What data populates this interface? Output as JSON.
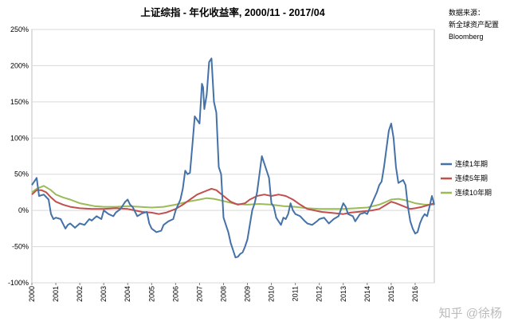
{
  "chart_data": {
    "type": "line",
    "title": "上证综指 - 年化收益率, 2000/11 - 2017/04",
    "source_lines": [
      "数据来源：",
      "新全球资产配置",
      "Bloomberg"
    ],
    "watermark": "知乎 @徐杨",
    "ylim": [
      -100,
      250
    ],
    "y_ticks": [
      250,
      200,
      150,
      100,
      50,
      0,
      -50,
      -100
    ],
    "y_tick_labels": [
      "250%",
      "200%",
      "150%",
      "100%",
      "50%",
      "0%",
      "-50%",
      "-100%"
    ],
    "x_range": [
      2000.0,
      2016.8
    ],
    "x_ticks": [
      2000,
      2001,
      2002,
      2003,
      2004,
      2005,
      2006,
      2007,
      2008,
      2009,
      2010,
      2011,
      2012,
      2013,
      2014,
      2015,
      2016
    ],
    "x_tick_labels": [
      "2000",
      "2001",
      "2002",
      "2003",
      "2004",
      "2005",
      "2006",
      "2007",
      "2008",
      "2009",
      "2010",
      "2011",
      "2012",
      "2013",
      "2014",
      "2015",
      "2016"
    ],
    "legend_position": "right",
    "grid": "horizontal",
    "series": [
      {
        "name": "连续1年期",
        "color": "#4472a8",
        "points": [
          [
            2000.0,
            35
          ],
          [
            2000.2,
            45
          ],
          [
            2000.3,
            20
          ],
          [
            2000.5,
            22
          ],
          [
            2000.7,
            15
          ],
          [
            2000.8,
            -5
          ],
          [
            2000.9,
            -12
          ],
          [
            2001.0,
            -10
          ],
          [
            2001.2,
            -12
          ],
          [
            2001.4,
            -25
          ],
          [
            2001.5,
            -20
          ],
          [
            2001.6,
            -18
          ],
          [
            2001.8,
            -24
          ],
          [
            2002.0,
            -18
          ],
          [
            2002.2,
            -20
          ],
          [
            2002.4,
            -12
          ],
          [
            2002.5,
            -14
          ],
          [
            2002.7,
            -8
          ],
          [
            2002.9,
            -12
          ],
          [
            2003.0,
            0
          ],
          [
            2003.2,
            -5
          ],
          [
            2003.4,
            -8
          ],
          [
            2003.5,
            -3
          ],
          [
            2003.7,
            2
          ],
          [
            2003.9,
            12
          ],
          [
            2004.0,
            15
          ],
          [
            2004.1,
            8
          ],
          [
            2004.2,
            5
          ],
          [
            2004.4,
            -8
          ],
          [
            2004.6,
            -4
          ],
          [
            2004.8,
            -2
          ],
          [
            2004.9,
            -18
          ],
          [
            2005.0,
            -25
          ],
          [
            2005.2,
            -30
          ],
          [
            2005.4,
            -28
          ],
          [
            2005.5,
            -20
          ],
          [
            2005.7,
            -15
          ],
          [
            2005.9,
            -12
          ],
          [
            2006.0,
            0
          ],
          [
            2006.2,
            15
          ],
          [
            2006.3,
            30
          ],
          [
            2006.4,
            55
          ],
          [
            2006.5,
            50
          ],
          [
            2006.6,
            52
          ],
          [
            2006.7,
            90
          ],
          [
            2006.8,
            130
          ],
          [
            2006.9,
            125
          ],
          [
            2007.0,
            120
          ],
          [
            2007.1,
            175
          ],
          [
            2007.15,
            170
          ],
          [
            2007.2,
            140
          ],
          [
            2007.3,
            160
          ],
          [
            2007.4,
            205
          ],
          [
            2007.5,
            210
          ],
          [
            2007.6,
            150
          ],
          [
            2007.7,
            135
          ],
          [
            2007.8,
            60
          ],
          [
            2007.9,
            50
          ],
          [
            2008.0,
            -10
          ],
          [
            2008.2,
            -30
          ],
          [
            2008.3,
            -45
          ],
          [
            2008.4,
            -55
          ],
          [
            2008.5,
            -65
          ],
          [
            2008.6,
            -64
          ],
          [
            2008.7,
            -60
          ],
          [
            2008.8,
            -58
          ],
          [
            2008.9,
            -50
          ],
          [
            2009.0,
            -40
          ],
          [
            2009.1,
            -20
          ],
          [
            2009.2,
            0
          ],
          [
            2009.3,
            10
          ],
          [
            2009.4,
            25
          ],
          [
            2009.5,
            50
          ],
          [
            2009.6,
            75
          ],
          [
            2009.7,
            65
          ],
          [
            2009.8,
            55
          ],
          [
            2009.9,
            45
          ],
          [
            2010.0,
            10
          ],
          [
            2010.1,
            5
          ],
          [
            2010.2,
            -10
          ],
          [
            2010.3,
            -15
          ],
          [
            2010.4,
            -20
          ],
          [
            2010.5,
            -10
          ],
          [
            2010.6,
            -12
          ],
          [
            2010.7,
            -5
          ],
          [
            2010.8,
            10
          ],
          [
            2010.9,
            0
          ],
          [
            2011.0,
            -5
          ],
          [
            2011.2,
            -8
          ],
          [
            2011.4,
            -15
          ],
          [
            2011.5,
            -18
          ],
          [
            2011.7,
            -20
          ],
          [
            2011.9,
            -15
          ],
          [
            2012.0,
            -12
          ],
          [
            2012.2,
            -10
          ],
          [
            2012.4,
            -18
          ],
          [
            2012.6,
            -12
          ],
          [
            2012.8,
            -8
          ],
          [
            2013.0,
            10
          ],
          [
            2013.1,
            5
          ],
          [
            2013.2,
            -5
          ],
          [
            2013.4,
            -8
          ],
          [
            2013.5,
            -15
          ],
          [
            2013.7,
            -5
          ],
          [
            2013.9,
            -3
          ],
          [
            2014.0,
            -5
          ],
          [
            2014.2,
            10
          ],
          [
            2014.4,
            25
          ],
          [
            2014.5,
            35
          ],
          [
            2014.6,
            40
          ],
          [
            2014.7,
            60
          ],
          [
            2014.8,
            85
          ],
          [
            2014.9,
            110
          ],
          [
            2015.0,
            120
          ],
          [
            2015.1,
            100
          ],
          [
            2015.2,
            60
          ],
          [
            2015.3,
            38
          ],
          [
            2015.4,
            40
          ],
          [
            2015.5,
            42
          ],
          [
            2015.6,
            35
          ],
          [
            2015.7,
            5
          ],
          [
            2015.8,
            -15
          ],
          [
            2015.9,
            -25
          ],
          [
            2016.0,
            -32
          ],
          [
            2016.1,
            -30
          ],
          [
            2016.2,
            -18
          ],
          [
            2016.3,
            -10
          ],
          [
            2016.4,
            -5
          ],
          [
            2016.5,
            -8
          ],
          [
            2016.6,
            5
          ],
          [
            2016.7,
            20
          ],
          [
            2016.8,
            8
          ]
        ]
      },
      {
        "name": "连续5年期",
        "color": "#c0504d",
        "points": [
          [
            2000.0,
            22
          ],
          [
            2000.2,
            28
          ],
          [
            2000.4,
            28
          ],
          [
            2000.6,
            25
          ],
          [
            2000.8,
            18
          ],
          [
            2001.0,
            12
          ],
          [
            2001.3,
            8
          ],
          [
            2001.6,
            5
          ],
          [
            2002.0,
            3
          ],
          [
            2002.5,
            2
          ],
          [
            2003.0,
            2
          ],
          [
            2003.5,
            3
          ],
          [
            2004.0,
            2
          ],
          [
            2004.3,
            0
          ],
          [
            2004.6,
            -2
          ],
          [
            2005.0,
            -3
          ],
          [
            2005.3,
            -5
          ],
          [
            2005.6,
            -3
          ],
          [
            2006.0,
            2
          ],
          [
            2006.3,
            8
          ],
          [
            2006.6,
            15
          ],
          [
            2006.9,
            22
          ],
          [
            2007.2,
            26
          ],
          [
            2007.5,
            30
          ],
          [
            2007.7,
            28
          ],
          [
            2008.0,
            20
          ],
          [
            2008.3,
            12
          ],
          [
            2008.6,
            8
          ],
          [
            2008.9,
            10
          ],
          [
            2009.1,
            15
          ],
          [
            2009.4,
            20
          ],
          [
            2009.7,
            22
          ],
          [
            2010.0,
            20
          ],
          [
            2010.3,
            22
          ],
          [
            2010.6,
            20
          ],
          [
            2010.9,
            15
          ],
          [
            2011.2,
            8
          ],
          [
            2011.5,
            2
          ],
          [
            2011.8,
            0
          ],
          [
            2012.1,
            -2
          ],
          [
            2012.4,
            -3
          ],
          [
            2012.7,
            -4
          ],
          [
            2013.0,
            -5
          ],
          [
            2013.3,
            -3
          ],
          [
            2013.6,
            -2
          ],
          [
            2013.9,
            -1
          ],
          [
            2014.2,
            0
          ],
          [
            2014.5,
            2
          ],
          [
            2014.8,
            8
          ],
          [
            2015.0,
            12
          ],
          [
            2015.2,
            10
          ],
          [
            2015.5,
            6
          ],
          [
            2015.8,
            2
          ],
          [
            2016.0,
            3
          ],
          [
            2016.3,
            5
          ],
          [
            2016.6,
            8
          ],
          [
            2016.8,
            10
          ]
        ]
      },
      {
        "name": "连续10年期",
        "color": "#9bbb59",
        "points": [
          [
            2000.0,
            25
          ],
          [
            2000.2,
            30
          ],
          [
            2000.5,
            34
          ],
          [
            2000.8,
            28
          ],
          [
            2001.0,
            22
          ],
          [
            2001.3,
            18
          ],
          [
            2001.6,
            15
          ],
          [
            2002.0,
            10
          ],
          [
            2002.3,
            8
          ],
          [
            2002.6,
            6
          ],
          [
            2003.0,
            5
          ],
          [
            2003.5,
            5
          ],
          [
            2004.0,
            6
          ],
          [
            2004.5,
            5
          ],
          [
            2005.0,
            4
          ],
          [
            2005.5,
            5
          ],
          [
            2006.0,
            8
          ],
          [
            2006.5,
            12
          ],
          [
            2007.0,
            15
          ],
          [
            2007.3,
            17
          ],
          [
            2007.6,
            16
          ],
          [
            2008.0,
            13
          ],
          [
            2008.5,
            9
          ],
          [
            2009.0,
            8
          ],
          [
            2009.5,
            9
          ],
          [
            2010.0,
            8
          ],
          [
            2010.5,
            6
          ],
          [
            2011.0,
            5
          ],
          [
            2011.5,
            3
          ],
          [
            2012.0,
            2
          ],
          [
            2012.5,
            2
          ],
          [
            2013.0,
            2
          ],
          [
            2013.5,
            3
          ],
          [
            2014.0,
            4
          ],
          [
            2014.5,
            8
          ],
          [
            2014.8,
            12
          ],
          [
            2015.0,
            15
          ],
          [
            2015.3,
            16
          ],
          [
            2015.6,
            14
          ],
          [
            2016.0,
            10
          ],
          [
            2016.4,
            8
          ],
          [
            2016.8,
            8
          ]
        ]
      }
    ]
  }
}
